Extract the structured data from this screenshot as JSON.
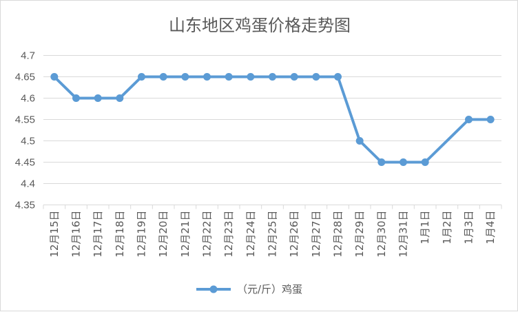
{
  "chart_data": {
    "type": "line",
    "title": "山东地区鸡蛋价格走势图",
    "xlabel": "",
    "ylabel": "",
    "categories": [
      "12月15日",
      "12月16日",
      "12月17日",
      "12月18日",
      "12月19日",
      "12月20日",
      "12月21日",
      "12月22日",
      "12月23日",
      "12月24日",
      "12月25日",
      "12月26日",
      "12月27日",
      "12月28日",
      "12月29日",
      "12月30日",
      "12月31日",
      "1月1日",
      "1月2日",
      "1月3日",
      "1月4日"
    ],
    "y_ticks": [
      "4.35",
      "4.4",
      "4.45",
      "4.5",
      "4.55",
      "4.6",
      "4.65",
      "4.7"
    ],
    "ylim": [
      4.35,
      4.7
    ],
    "grid": true,
    "legend_position": "bottom",
    "series": [
      {
        "name": "（元/斤）鸡蛋",
        "color": "#5B9BD5",
        "values": [
          4.65,
          4.6,
          4.6,
          4.6,
          4.65,
          4.65,
          4.65,
          4.65,
          4.65,
          4.65,
          4.65,
          4.65,
          4.65,
          4.65,
          4.5,
          4.45,
          4.45,
          4.45,
          null,
          4.55,
          4.55
        ]
      }
    ]
  }
}
